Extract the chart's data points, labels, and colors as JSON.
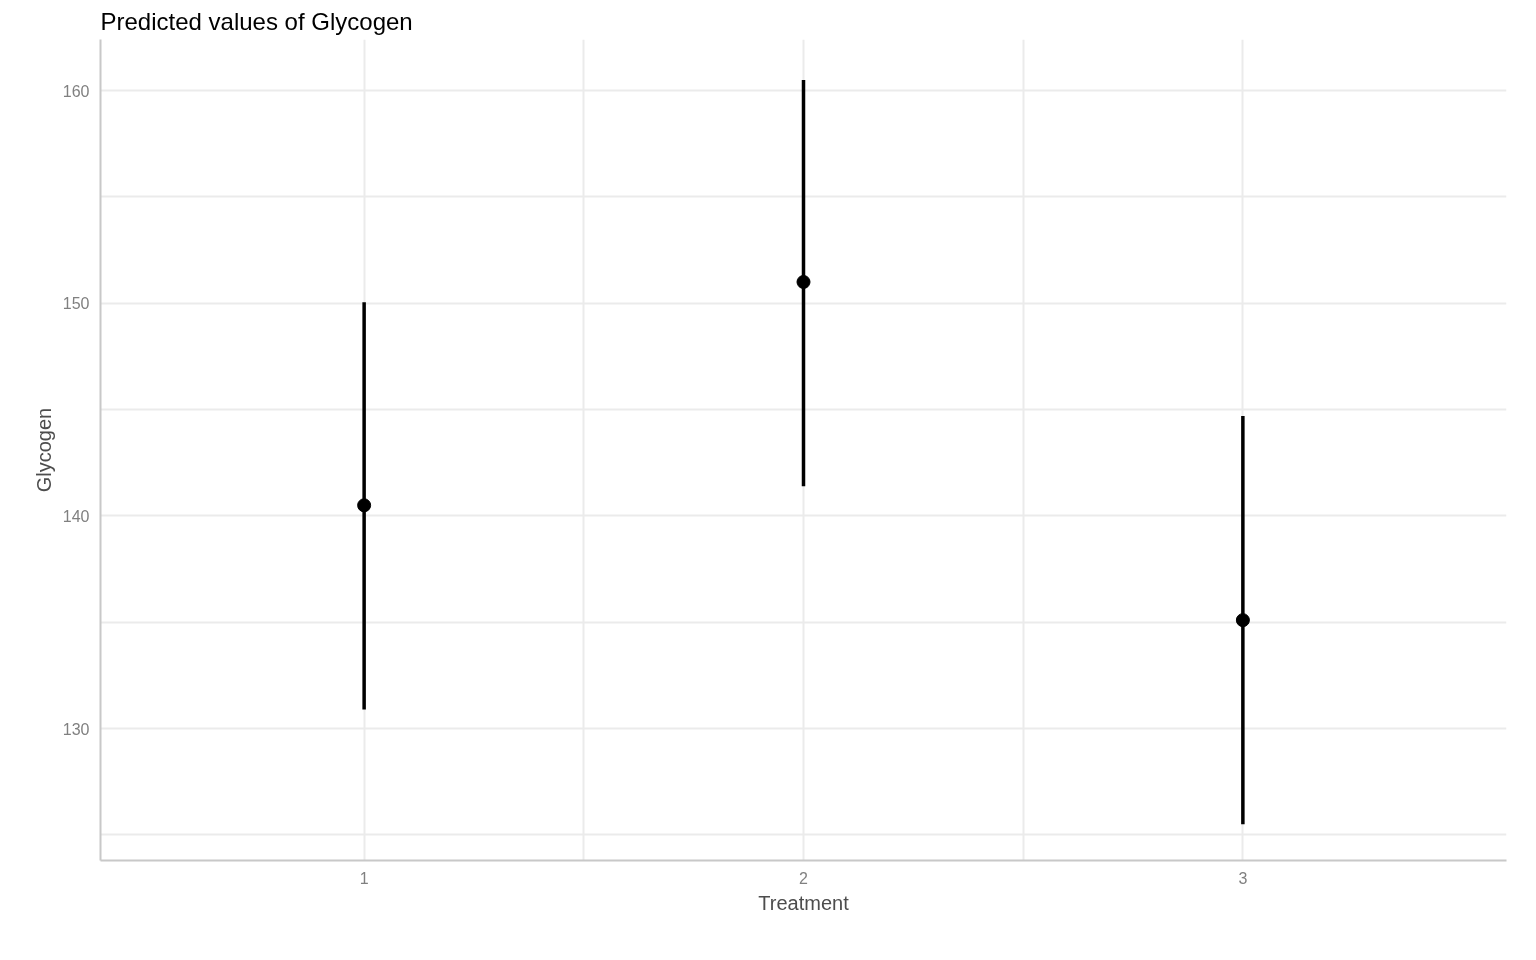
{
  "chart_data": {
    "type": "scatter",
    "title": "Predicted values of Glycogen",
    "xlabel": "Treatment",
    "ylabel": "Glycogen",
    "categories": [
      "1",
      "2",
      "3"
    ],
    "series": [
      {
        "color": "#000000",
        "values": [
          140.5,
          151.0,
          135.1
        ],
        "errors": [
          [
            130.9,
            150.05
          ],
          [
            141.4,
            160.5
          ],
          [
            125.5,
            144.7
          ]
        ]
      }
    ],
    "ylim": [
      123.8,
      162.4
    ],
    "yticks": [
      {
        "value": 125,
        "label": null
      },
      130,
      {
        "value": 135,
        "label": null
      },
      140,
      {
        "value": 145,
        "label": null
      },
      150,
      {
        "value": 155,
        "label": null
      },
      160
    ],
    "grid": true,
    "marker": "circle"
  }
}
